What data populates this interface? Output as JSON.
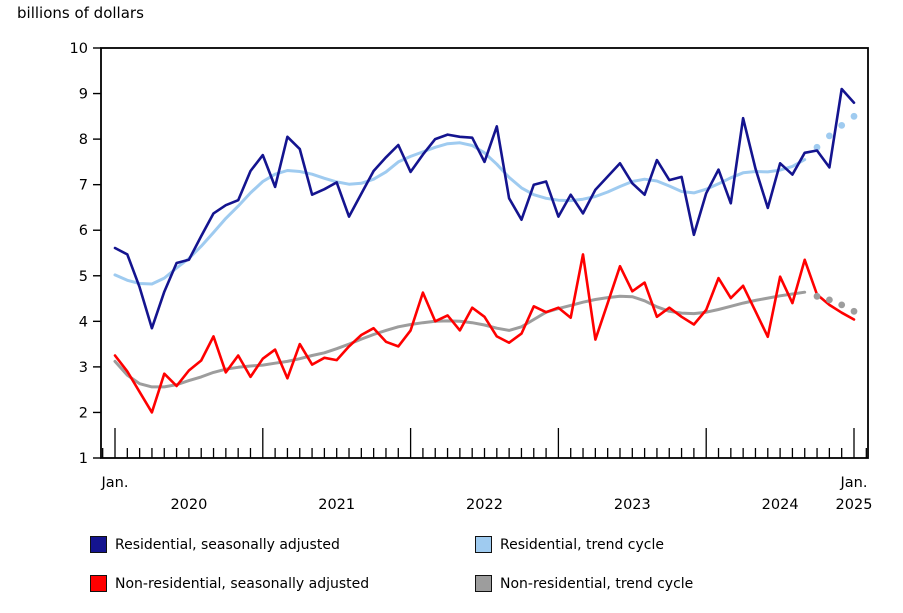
{
  "title": "billions of dollars",
  "colors": {
    "residential_sa": "#14148F",
    "residential_trend": "#9FCBF0",
    "non_residential_sa": "#FF0000",
    "non_residential_trend": "#9D9D9D",
    "axis": "#000000"
  },
  "legend": {
    "items": [
      {
        "label": "Residential, seasonally adjusted",
        "color": "residential_sa"
      },
      {
        "label": "Residential, trend cycle",
        "color": "residential_trend"
      },
      {
        "label": "Non-residential, seasonally adjusted",
        "color": "non_residential_sa"
      },
      {
        "label": "Non-residential, trend cycle",
        "color": "non_residential_trend"
      }
    ]
  },
  "chart_data": {
    "type": "line",
    "title": "billions of dollars",
    "ylabel": "billions of dollars",
    "ylim": [
      1,
      10
    ],
    "yticks": [
      1,
      2,
      3,
      4,
      5,
      6,
      7,
      8,
      9,
      10
    ],
    "grid": false,
    "legend_position": "bottom",
    "x_axis": {
      "first_tick_label": "Jan.",
      "end_month_label": "Jan.",
      "end_year_label": "2025",
      "end_month_index": 60,
      "year_labels": [
        {
          "text": "2020",
          "month_index": 6
        },
        {
          "text": "2021",
          "month_index": 18
        },
        {
          "text": "2022",
          "month_index": 30
        },
        {
          "text": "2023",
          "month_index": 42
        },
        {
          "text": "2024",
          "month_index": 54
        }
      ]
    },
    "months": [
      "2020-01",
      "2020-02",
      "2020-03",
      "2020-04",
      "2020-05",
      "2020-06",
      "2020-07",
      "2020-08",
      "2020-09",
      "2020-10",
      "2020-11",
      "2020-12",
      "2021-01",
      "2021-02",
      "2021-03",
      "2021-04",
      "2021-05",
      "2021-06",
      "2021-07",
      "2021-08",
      "2021-09",
      "2021-10",
      "2021-11",
      "2021-12",
      "2022-01",
      "2022-02",
      "2022-03",
      "2022-04",
      "2022-05",
      "2022-06",
      "2022-07",
      "2022-08",
      "2022-09",
      "2022-10",
      "2022-11",
      "2022-12",
      "2023-01",
      "2023-02",
      "2023-03",
      "2023-04",
      "2023-05",
      "2023-06",
      "2023-07",
      "2023-08",
      "2023-09",
      "2023-10",
      "2023-11",
      "2023-12",
      "2024-01",
      "2024-02",
      "2024-03",
      "2024-04",
      "2024-05",
      "2024-06",
      "2024-07",
      "2024-08",
      "2024-09",
      "2024-10",
      "2024-11",
      "2024-12",
      "2025-01"
    ],
    "series": [
      {
        "name": "Residential, seasonally adjusted",
        "color": "residential_sa",
        "style": "solid",
        "stroke_width": 2.6,
        "values": [
          5.61,
          5.47,
          4.75,
          3.85,
          4.65,
          5.28,
          5.35,
          5.87,
          6.37,
          6.55,
          6.66,
          7.3,
          7.65,
          6.95,
          8.05,
          7.78,
          6.78,
          6.9,
          7.05,
          6.3,
          6.8,
          7.3,
          7.6,
          7.87,
          7.28,
          7.66,
          8.0,
          8.1,
          8.05,
          8.03,
          7.5,
          8.28,
          6.7,
          6.23,
          7.0,
          7.07,
          6.3,
          6.78,
          6.37,
          6.89,
          7.18,
          7.47,
          7.03,
          6.78,
          7.54,
          7.1,
          7.17,
          5.9,
          6.81,
          7.33,
          6.59,
          8.46,
          7.35,
          6.49,
          7.47,
          7.22,
          7.7,
          7.75,
          7.38,
          9.1,
          8.8
        ]
      },
      {
        "name": "Residential, trend cycle",
        "color": "residential_trend",
        "style": "solid_then_dotted",
        "dotted_from_index": 57,
        "stroke_width": 3.0,
        "values": [
          5.02,
          4.9,
          4.83,
          4.82,
          4.95,
          5.17,
          5.38,
          5.65,
          5.95,
          6.26,
          6.53,
          6.82,
          7.07,
          7.23,
          7.31,
          7.29,
          7.23,
          7.14,
          7.06,
          7.01,
          7.03,
          7.12,
          7.28,
          7.5,
          7.62,
          7.72,
          7.82,
          7.9,
          7.92,
          7.86,
          7.7,
          7.45,
          7.16,
          6.93,
          6.78,
          6.7,
          6.66,
          6.65,
          6.68,
          6.74,
          6.84,
          6.96,
          7.07,
          7.12,
          7.08,
          6.97,
          6.85,
          6.82,
          6.9,
          7.02,
          7.15,
          7.26,
          7.29,
          7.28,
          7.32,
          7.4,
          7.55,
          7.82,
          8.07,
          8.3,
          8.5
        ]
      },
      {
        "name": "Non-residential, seasonally adjusted",
        "color": "non_residential_sa",
        "style": "solid",
        "stroke_width": 2.6,
        "values": [
          3.25,
          2.9,
          2.45,
          2.0,
          2.85,
          2.58,
          2.92,
          3.14,
          3.67,
          2.88,
          3.25,
          2.78,
          3.18,
          3.38,
          2.75,
          3.5,
          3.05,
          3.2,
          3.15,
          3.45,
          3.7,
          3.85,
          3.55,
          3.45,
          3.8,
          4.63,
          4.0,
          4.13,
          3.8,
          4.3,
          4.1,
          3.67,
          3.53,
          3.73,
          4.33,
          4.2,
          4.3,
          4.08,
          5.47,
          3.6,
          4.4,
          5.21,
          4.66,
          4.85,
          4.1,
          4.3,
          4.1,
          3.93,
          4.25,
          4.95,
          4.51,
          4.78,
          4.22,
          3.66,
          4.98,
          4.4,
          5.35,
          4.59,
          4.36,
          4.19,
          4.04
        ]
      },
      {
        "name": "Non-residential, trend cycle",
        "color": "non_residential_trend",
        "style": "solid_then_dotted",
        "dotted_from_index": 57,
        "stroke_width": 3.0,
        "values": [
          3.12,
          2.82,
          2.63,
          2.56,
          2.56,
          2.61,
          2.7,
          2.78,
          2.88,
          2.95,
          2.99,
          3.02,
          3.04,
          3.08,
          3.12,
          3.18,
          3.25,
          3.31,
          3.4,
          3.5,
          3.61,
          3.71,
          3.8,
          3.88,
          3.93,
          3.97,
          4.0,
          4.01,
          4.0,
          3.97,
          3.92,
          3.85,
          3.8,
          3.88,
          4.04,
          4.2,
          4.28,
          4.35,
          4.42,
          4.48,
          4.52,
          4.55,
          4.54,
          4.45,
          4.32,
          4.22,
          4.18,
          4.17,
          4.2,
          4.26,
          4.33,
          4.4,
          4.46,
          4.51,
          4.56,
          4.6,
          4.64,
          4.55,
          4.47,
          4.36,
          4.22
        ]
      }
    ]
  }
}
